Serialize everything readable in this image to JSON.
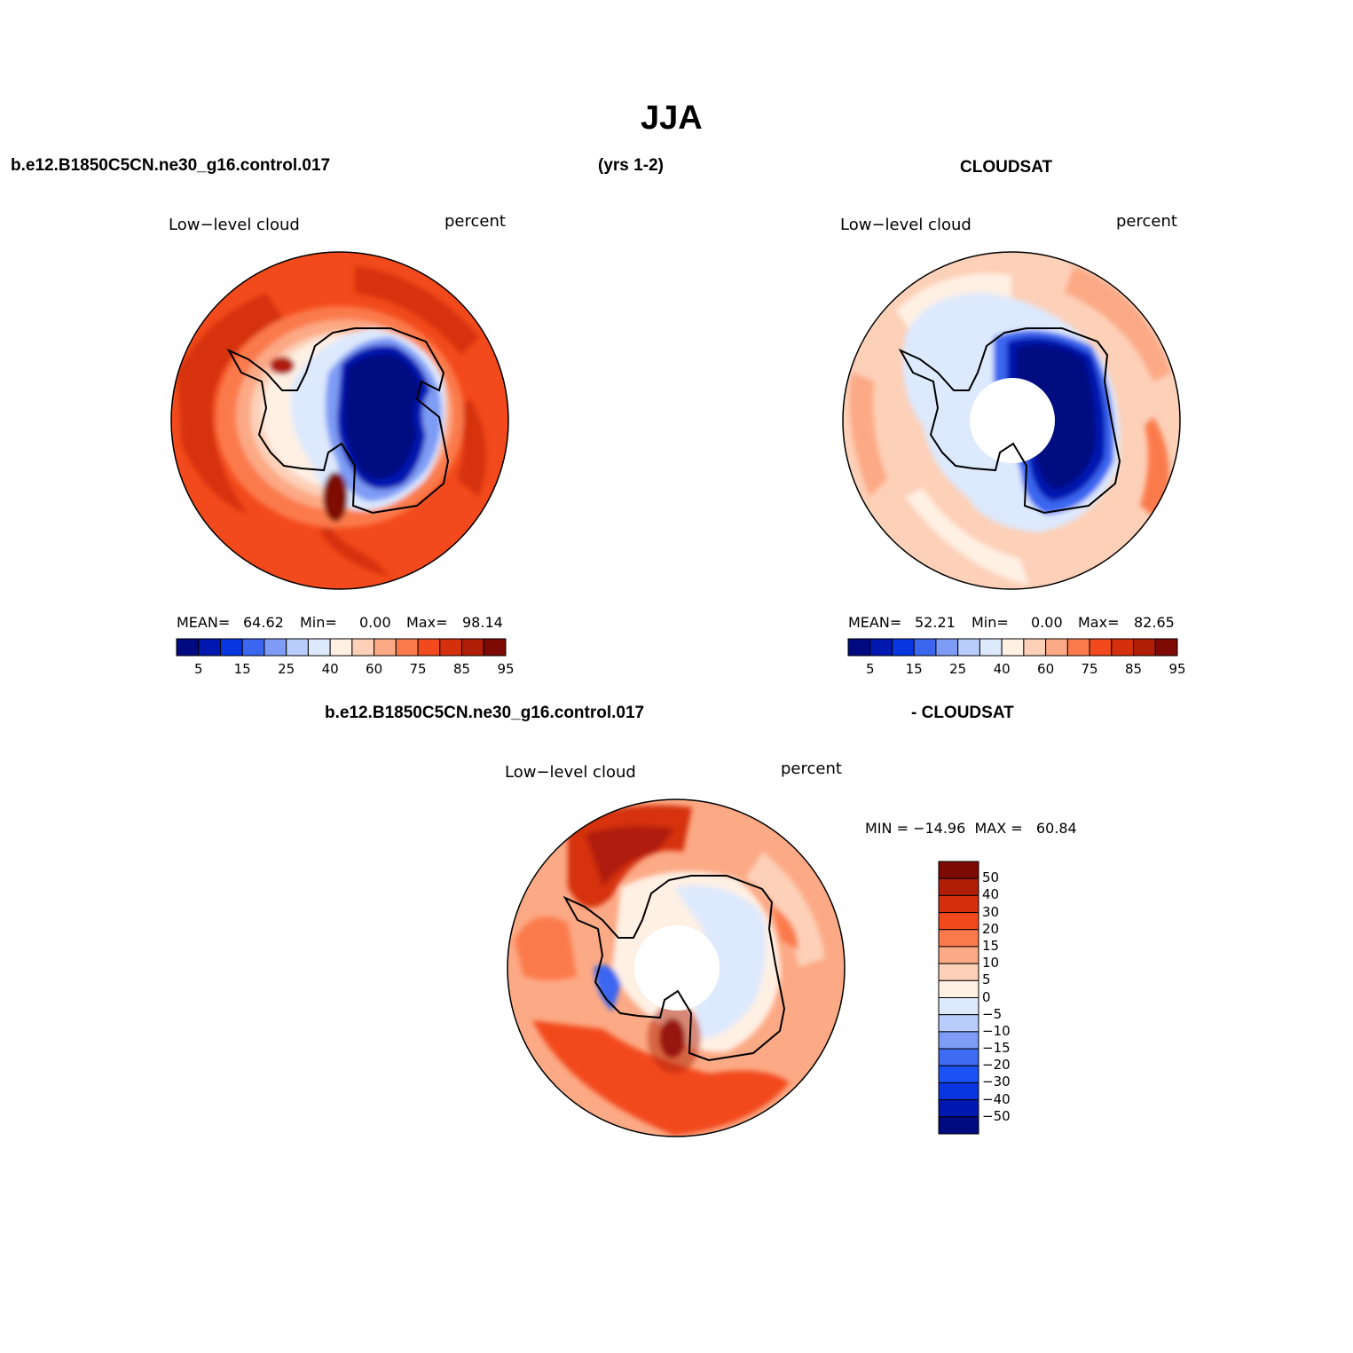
{
  "title": "JJA",
  "case_name": "b.e12.B1850C5CN.ne30_g16.control.017",
  "years": "(yrs 1-2)",
  "obs_name": "CLOUDSAT",
  "diff_obs": "- CLOUDSAT",
  "colors": {
    "abs_scale": [
      "#000a80",
      "#0018b0",
      "#0835e0",
      "#3b66f0",
      "#7e9cf5",
      "#b8cdfb",
      "#dde9fd",
      "#fff0e4",
      "#fdd0b8",
      "#fca985",
      "#fb7a4c",
      "#f24a1c",
      "#d5300d",
      "#b01e08",
      "#7e0a06"
    ],
    "diff_scale": [
      "#000a80",
      "#0018b0",
      "#0835e0",
      "#1a52f5",
      "#3d6cf2",
      "#7e9cf5",
      "#b8cdfb",
      "#dde9fd",
      "#fff0e4",
      "#fdd0b8",
      "#fca985",
      "#fb7a4c",
      "#f24a1c",
      "#d5300d",
      "#b01e08",
      "#7e0a06"
    ]
  },
  "panels": [
    {
      "id": "model",
      "left_label": "Low−level cloud",
      "right_label": "percent",
      "mean_label": "MEAN=",
      "mean": "64.62",
      "min_label": "Min=",
      "min": "0.00",
      "max_label": "Max=",
      "max": "98.14",
      "ticks": [
        "5",
        "15",
        "25",
        "40",
        "60",
        "75",
        "85",
        "95"
      ]
    },
    {
      "id": "obs",
      "left_label": "Low−level cloud",
      "right_label": "percent",
      "mean_label": "MEAN=",
      "mean": "52.21",
      "min_label": "Min=",
      "min": "0.00",
      "max_label": "Max=",
      "max": "82.65",
      "ticks": [
        "5",
        "15",
        "25",
        "40",
        "60",
        "75",
        "85",
        "95"
      ]
    },
    {
      "id": "diff",
      "left_label": "Low−level cloud",
      "right_label": "percent",
      "minmax_text": "MIN = −14.96  MAX =   60.84",
      "ticks": [
        "50",
        "40",
        "30",
        "20",
        "15",
        "10",
        "5",
        "0",
        "−5",
        "−10",
        "−15",
        "−20",
        "−30",
        "−40",
        "−50"
      ]
    }
  ]
}
